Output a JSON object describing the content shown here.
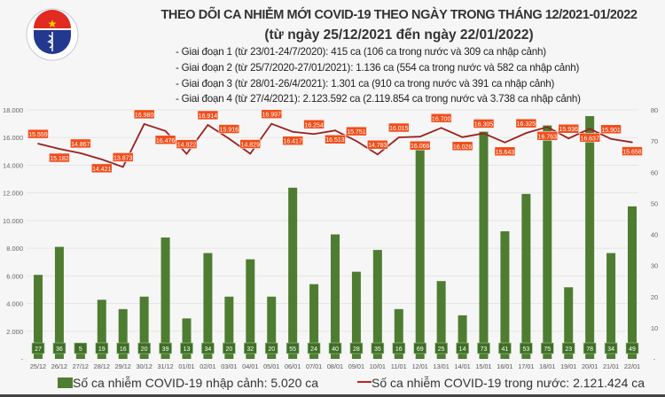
{
  "header": {
    "logo_text": "BỘ Y TẾ · MINISTRY OF HEALTH",
    "title": "THEO DÕI CA NHIỄM MỚI COVID-19 THEO NGÀY TRONG THÁNG 12/2021-01/2022",
    "subtitle": "(từ ngày 25/12/2021 đến ngày 22/01/2022)",
    "phases": [
      "- Giai đoạn 1 (từ 23/01-24/7/2020): 415 ca (106 ca trong nước và 309 ca nhập cảnh)",
      "- Giai đoạn 2 (từ 25/7/2020-27/01/2021): 1.136 ca (554 ca trong nước và 582 ca nhập cảnh)",
      "- Giai đoạn 3 (từ 28/01-26/4/2021): 1.301 ca (910 ca trong nước và 391 ca nhập cảnh)",
      "- Giai đoạn 4 (từ 27/4/2021): 2.123.592 ca (2.119.854 ca trong nước và 3.738 ca nhập cảnh)"
    ]
  },
  "chart_data": {
    "type": "bar+line",
    "categories": [
      "25/12",
      "26/12",
      "27/12",
      "28/12",
      "29/12",
      "30/12",
      "31/12",
      "01/01",
      "02/01",
      "03/01",
      "04/01",
      "05/01",
      "06/01",
      "07/01",
      "08/01",
      "09/01",
      "10/01",
      "11/01",
      "12/01",
      "13/01",
      "14/01",
      "15/01",
      "16/01",
      "17/01",
      "18/01",
      "19/01",
      "20/01",
      "21/01",
      "22/01"
    ],
    "series": [
      {
        "name": "Số ca nhiễm COVID-19 nhập cảnh: 5.020 ca",
        "type": "bar",
        "axis": "right",
        "color": "#4e7d32",
        "values": [
          27,
          36,
          5,
          19,
          16,
          20,
          39,
          13,
          34,
          20,
          32,
          20,
          55,
          24,
          40,
          28,
          35,
          16,
          69,
          25,
          14,
          73,
          41,
          53,
          75,
          23,
          78,
          34,
          49
        ],
        "labels": [
          "27",
          "36",
          "5",
          "19",
          "16",
          "20",
          "39",
          "13",
          "34",
          "20",
          "32",
          "20",
          "55",
          "24",
          "40",
          "28",
          "35",
          "16",
          "69",
          "25",
          "14",
          "73",
          "41",
          "53",
          "75",
          "23",
          "78",
          "34",
          "49"
        ]
      },
      {
        "name": "Số ca nhiễm COVID-19 trong nước: 2.121.424 ca",
        "type": "line",
        "axis": "left",
        "color": "#9c1f1f",
        "label_color": "#f04e1b",
        "values": [
          15559,
          15182,
          14867,
          14421,
          13873,
          16980,
          16476,
          14822,
          16914,
          15916,
          14829,
          16997,
          16417,
          16254,
          16513,
          15751,
          14783,
          16015,
          16066,
          16700,
          16026,
          16305,
          15643,
          16325,
          16763,
          15936,
          16637,
          15901,
          15658
        ],
        "labels": [
          "15.559",
          "15.182",
          "14.867",
          "14.421",
          "13.873",
          "16.980",
          "16.476",
          "14.822",
          "16.914",
          "15.916",
          "14.829",
          "16.997",
          "16.417",
          "16.254",
          "16.513",
          "15.751",
          "14.783",
          "16.015",
          "16.066",
          "16.700",
          "16.026",
          "16.305",
          "15.643",
          "16.325",
          "16.763",
          "15.936",
          "16.637",
          "15.901",
          "15.658"
        ]
      }
    ],
    "left_axis": {
      "range": [
        0,
        18000
      ],
      "ticks": [
        "-",
        "2.000",
        "4.000",
        "6.000",
        "8.000",
        "10.000",
        "12.000",
        "14.000",
        "16.000",
        "18.000"
      ]
    },
    "right_axis": {
      "range": [
        0,
        80
      ],
      "ticks": [
        "-",
        "10",
        "20",
        "30",
        "40",
        "50",
        "60",
        "70",
        "80"
      ]
    },
    "grid": true,
    "legend_position": "bottom"
  }
}
